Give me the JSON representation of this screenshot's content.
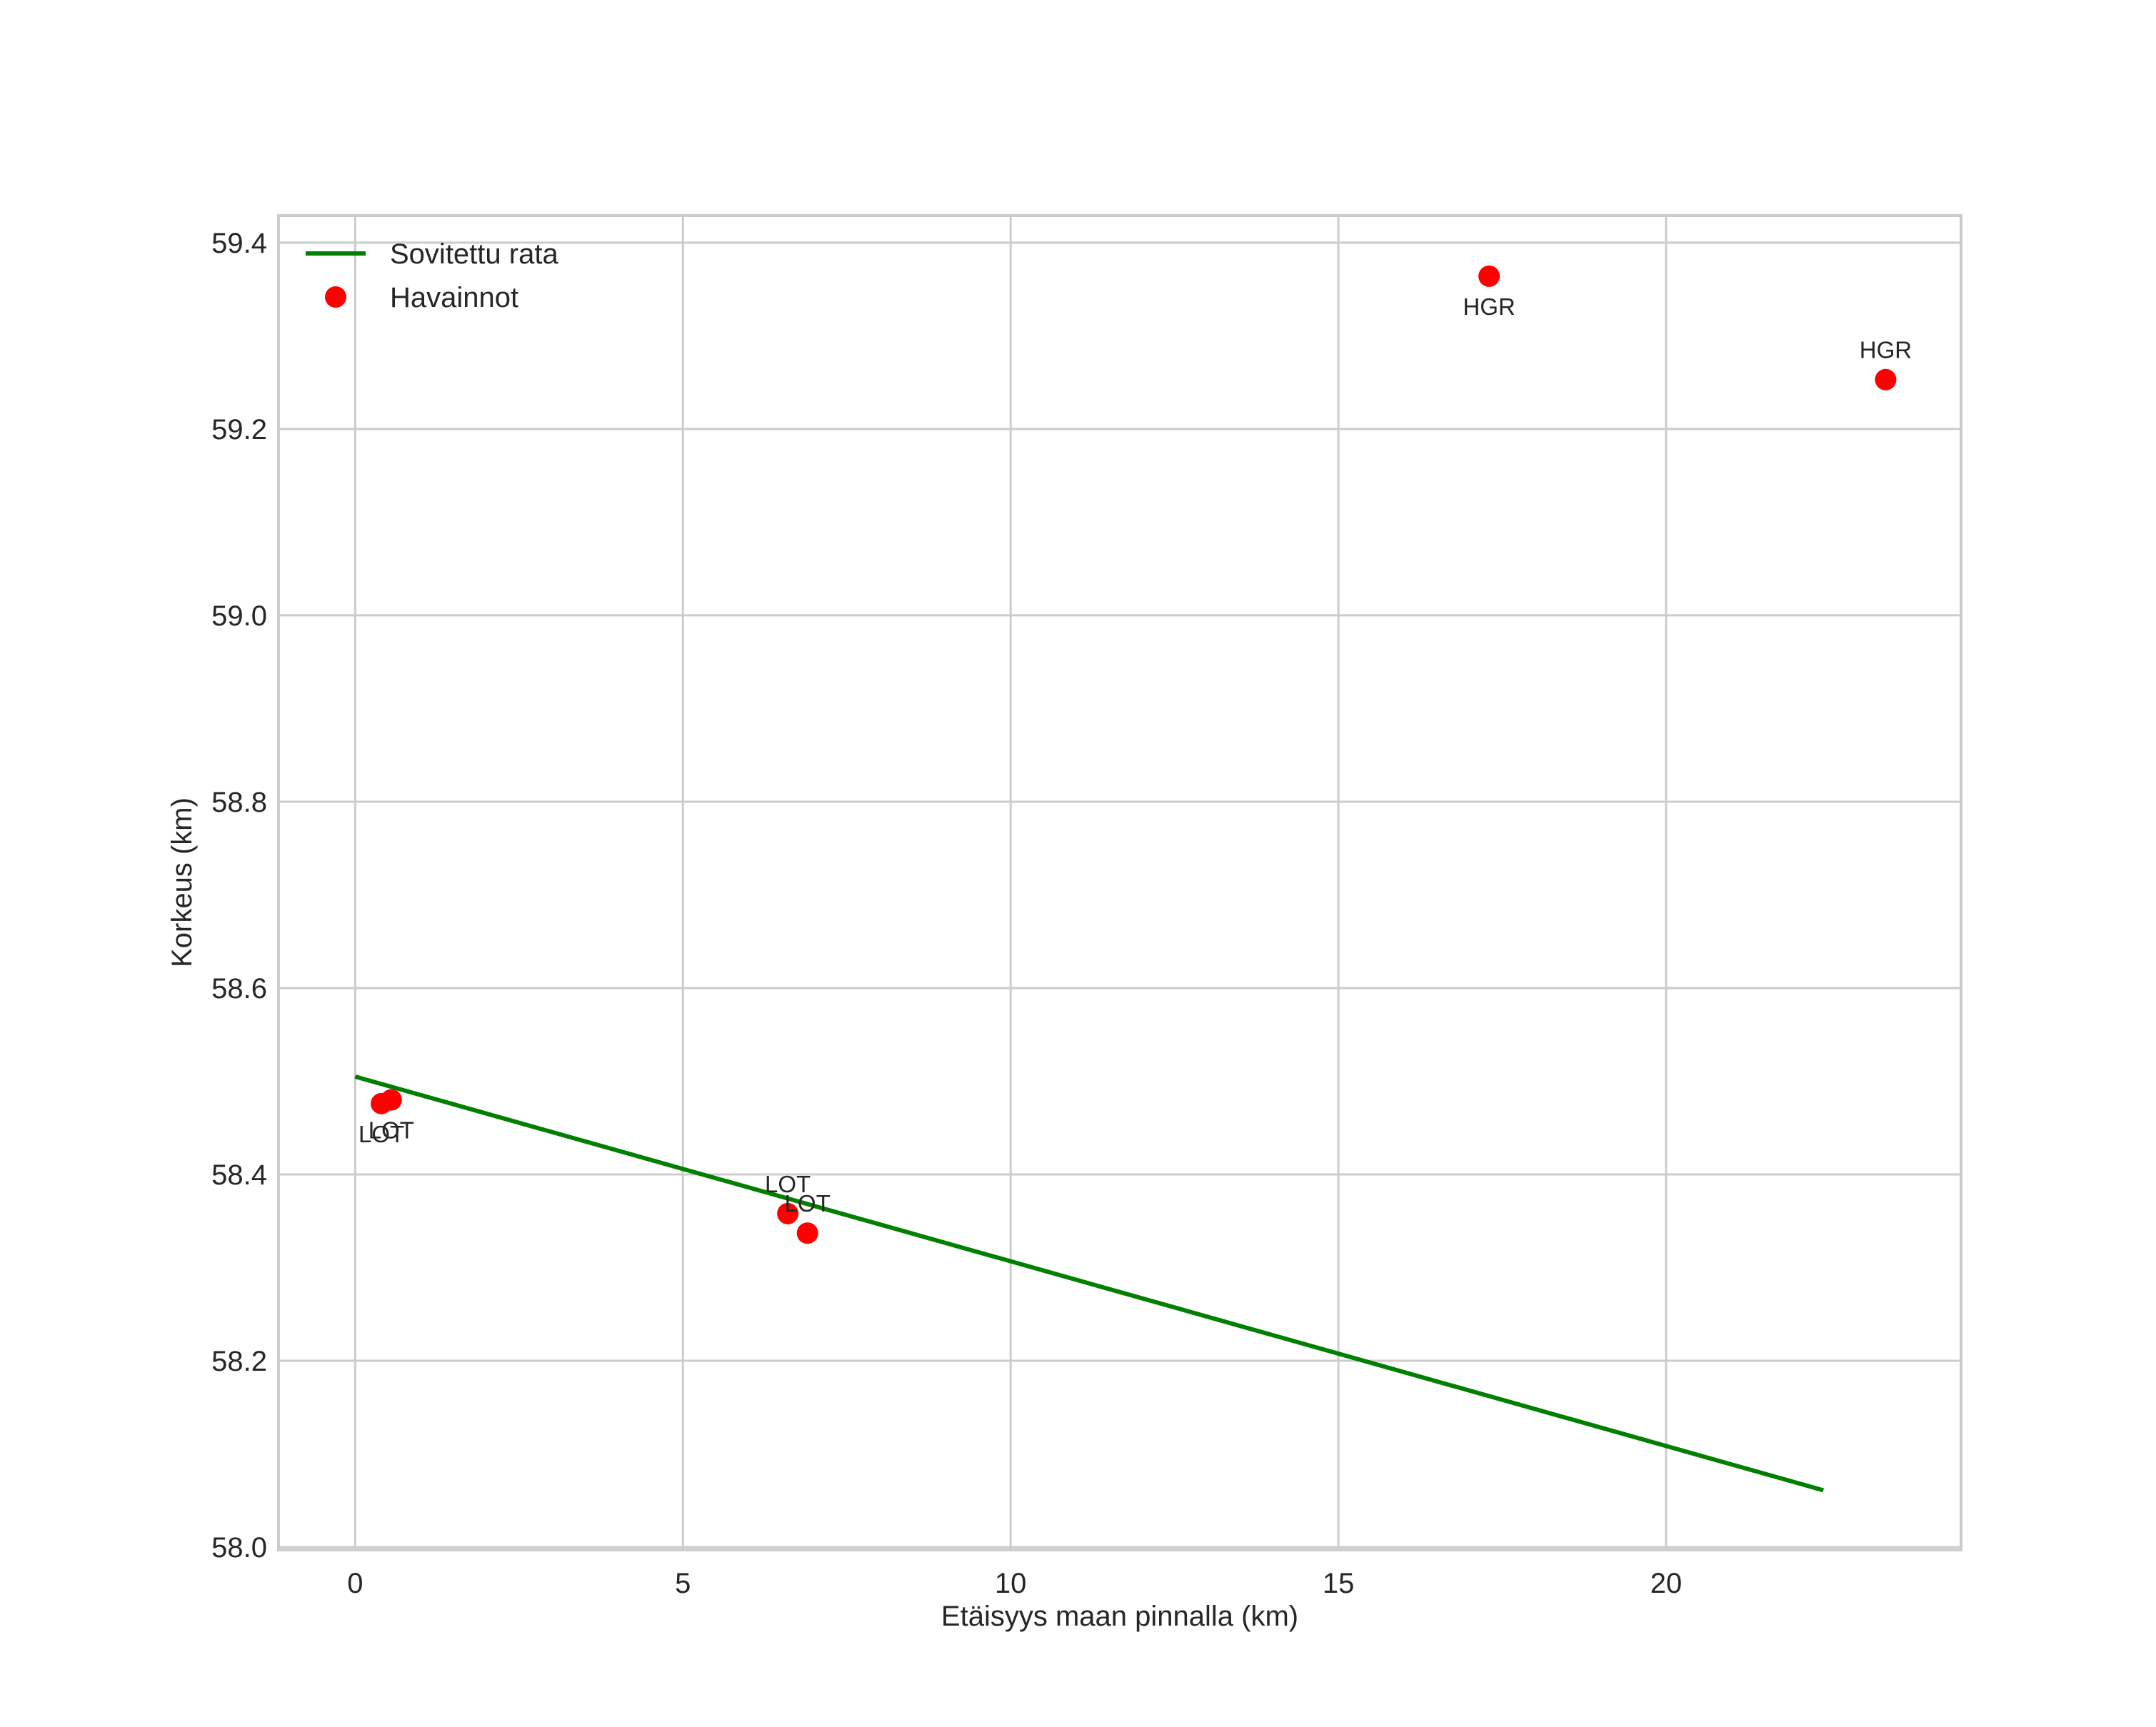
{
  "chart_data": {
    "type": "scatter",
    "title": "",
    "xlabel": "Etäisyys maan pinnalla (km)",
    "ylabel": "Korkeus (km)",
    "xlim": [
      -1.17,
      24.5
    ],
    "ylim": [
      57.997,
      59.429
    ],
    "xticks": [
      0,
      5,
      10,
      15,
      20
    ],
    "yticks": [
      58.0,
      58.2,
      58.4,
      58.6,
      58.8,
      59.0,
      59.2,
      59.4
    ],
    "xtick_labels": [
      "0",
      "5",
      "10",
      "15",
      "20"
    ],
    "ytick_labels": [
      "58.0",
      "58.2",
      "58.4",
      "58.6",
      "58.8",
      "59.0",
      "59.2",
      "59.4"
    ],
    "grid": true,
    "legend_position": "top-left",
    "series": [
      {
        "name": "Sovitettu rata",
        "kind": "line",
        "color": "#007f00",
        "x": [
          0,
          22.4
        ],
        "y": [
          58.505,
          58.061
        ]
      },
      {
        "name": "Havainnot",
        "kind": "scatter",
        "color": "#ff0000",
        "points": [
          {
            "x": 0.4,
            "y": 58.476,
            "label": "LOT",
            "label_pos": "below"
          },
          {
            "x": 0.55,
            "y": 58.48,
            "label": "LOT",
            "label_pos": "below"
          },
          {
            "x": 6.6,
            "y": 58.358,
            "label": "LOT",
            "label_pos": "above"
          },
          {
            "x": 6.9,
            "y": 58.337,
            "label": "LOT",
            "label_pos": "above"
          },
          {
            "x": 17.3,
            "y": 59.364,
            "label": "HGR",
            "label_pos": "below"
          },
          {
            "x": 23.35,
            "y": 59.253,
            "label": "HGR",
            "label_pos": "above"
          }
        ]
      }
    ]
  }
}
